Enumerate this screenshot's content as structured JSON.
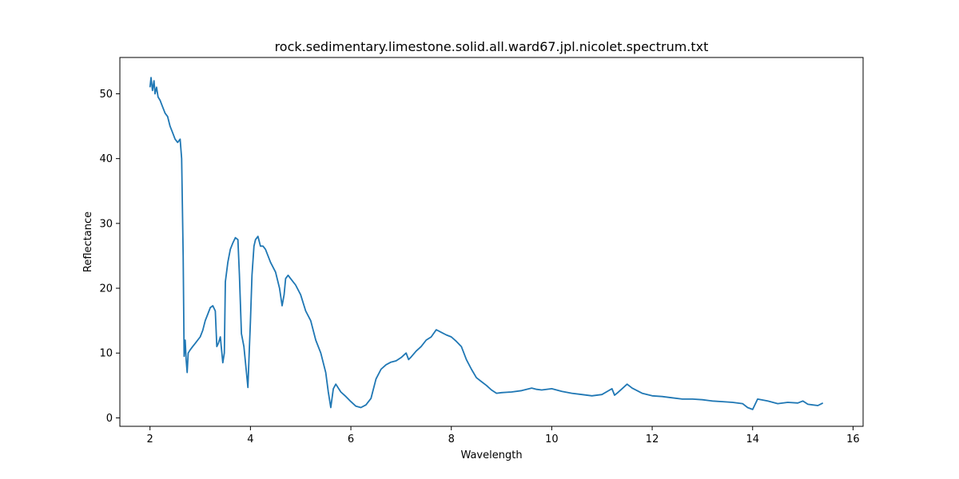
{
  "chart_data": {
    "type": "line",
    "title": "rock.sedimentary.limestone.solid.all.ward67.jpl.nicolet.spectrum.txt",
    "xlabel": "Wavelength",
    "ylabel": "Reflectance",
    "xlim": [
      1.4,
      16.2
    ],
    "ylim": [
      -1.3,
      55.6
    ],
    "xticks": [
      2,
      4,
      6,
      8,
      10,
      12,
      14,
      16
    ],
    "yticks": [
      0,
      10,
      20,
      30,
      40,
      50
    ],
    "grid": false,
    "legend": "none",
    "line_color": "#1f77b4",
    "series": [
      {
        "x": [
          2.0,
          2.02,
          2.05,
          2.08,
          2.1,
          2.13,
          2.16,
          2.2,
          2.25,
          2.3,
          2.35,
          2.4,
          2.45,
          2.5,
          2.55,
          2.6,
          2.63,
          2.66,
          2.68,
          2.7,
          2.72,
          2.74,
          2.76,
          2.8,
          2.85,
          2.9,
          2.95,
          3.0,
          3.05,
          3.1,
          3.15,
          3.2,
          3.25,
          3.3,
          3.33,
          3.36,
          3.4,
          3.45,
          3.48,
          3.5,
          3.55,
          3.6,
          3.65,
          3.7,
          3.75,
          3.78,
          3.82,
          3.87,
          3.92,
          3.95,
          3.97,
          4.0,
          4.03,
          4.07,
          4.1,
          4.15,
          4.2,
          4.25,
          4.3,
          4.4,
          4.5,
          4.58,
          4.63,
          4.67,
          4.7,
          4.75,
          4.8,
          4.9,
          5.0,
          5.1,
          5.2,
          5.3,
          5.4,
          5.5,
          5.55,
          5.6,
          5.65,
          5.7,
          5.8,
          5.9,
          6.0,
          6.1,
          6.2,
          6.3,
          6.4,
          6.5,
          6.6,
          6.7,
          6.8,
          6.9,
          7.0,
          7.1,
          7.15,
          7.2,
          7.3,
          7.4,
          7.5,
          7.6,
          7.7,
          7.8,
          7.9,
          8.0,
          8.1,
          8.2,
          8.3,
          8.4,
          8.5,
          8.6,
          8.7,
          8.8,
          8.9,
          9.0,
          9.2,
          9.4,
          9.6,
          9.7,
          9.8,
          10.0,
          10.2,
          10.4,
          10.6,
          10.8,
          11.0,
          11.2,
          11.25,
          11.3,
          11.4,
          11.5,
          11.6,
          11.8,
          12.0,
          12.2,
          12.4,
          12.6,
          12.8,
          13.0,
          13.2,
          13.4,
          13.6,
          13.8,
          13.9,
          14.0,
          14.1,
          14.3,
          14.5,
          14.7,
          14.9,
          15.0,
          15.1,
          15.3,
          15.4
        ],
        "y": [
          51,
          52.5,
          50.5,
          52,
          50,
          51,
          49.5,
          49,
          48,
          47,
          46.5,
          45,
          44,
          43,
          42.5,
          43,
          40,
          25,
          9.5,
          12,
          9,
          7,
          10,
          10.5,
          11,
          11.5,
          12,
          12.5,
          13.5,
          15,
          16,
          17,
          17.3,
          16.5,
          11,
          11.5,
          12.5,
          8.5,
          10,
          21,
          24,
          26,
          27,
          27.8,
          27.5,
          22,
          13,
          11,
          7,
          4.7,
          9,
          15,
          22,
          26.5,
          27.5,
          28,
          26.5,
          26.5,
          26,
          24,
          22.5,
          20,
          17.3,
          19,
          21.5,
          22,
          21.5,
          20.5,
          19,
          16.5,
          15,
          12,
          10,
          7,
          4,
          1.6,
          4.5,
          5.2,
          4,
          3.3,
          2.5,
          1.8,
          1.6,
          2,
          3,
          6,
          7.5,
          8.2,
          8.6,
          8.8,
          9.3,
          10,
          9,
          9.4,
          10.3,
          11,
          12,
          12.5,
          13.6,
          13.2,
          12.8,
          12.5,
          11.8,
          11,
          9,
          7.5,
          6.2,
          5.6,
          5,
          4.3,
          3.8,
          3.9,
          4,
          4.2,
          4.6,
          4.4,
          4.3,
          4.5,
          4.1,
          3.8,
          3.6,
          3.4,
          3.6,
          4.5,
          3.5,
          3.8,
          4.5,
          5.2,
          4.6,
          3.8,
          3.4,
          3.3,
          3.1,
          2.9,
          2.9,
          2.8,
          2.6,
          2.5,
          2.4,
          2.2,
          1.6,
          1.3,
          2.9,
          2.6,
          2.2,
          2.4,
          2.3,
          2.6,
          2.1,
          1.9,
          2.3
        ]
      }
    ]
  }
}
